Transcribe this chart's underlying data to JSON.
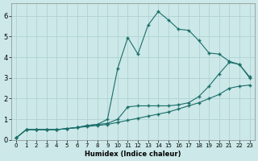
{
  "xlabel": "Humidex (Indice chaleur)",
  "bg_color": "#cce8e8",
  "line_color": "#1a6e6a",
  "xlim": [
    -0.5,
    23.5
  ],
  "ylim": [
    0,
    6.6
  ],
  "xticks": [
    0,
    1,
    2,
    3,
    4,
    5,
    6,
    7,
    8,
    9,
    10,
    11,
    12,
    13,
    14,
    15,
    16,
    17,
    18,
    19,
    20,
    21,
    22,
    23
  ],
  "yticks": [
    0,
    1,
    2,
    3,
    4,
    5,
    6
  ],
  "curve1_x": [
    0,
    1,
    2,
    3,
    4,
    5,
    6,
    7,
    8,
    9,
    10,
    11,
    12,
    13,
    14,
    15,
    16,
    17,
    18,
    19,
    20,
    21,
    22,
    23
  ],
  "curve1_y": [
    0.1,
    0.5,
    0.5,
    0.5,
    0.5,
    0.55,
    0.6,
    0.65,
    0.7,
    0.75,
    0.85,
    0.95,
    1.05,
    1.15,
    1.25,
    1.35,
    1.5,
    1.65,
    1.8,
    2.0,
    2.2,
    2.5,
    2.6,
    2.65
  ],
  "curve2_x": [
    0,
    1,
    2,
    3,
    4,
    5,
    6,
    7,
    8,
    9,
    10,
    11,
    12,
    13,
    14,
    15,
    16,
    17,
    18,
    19,
    20,
    21,
    22,
    23
  ],
  "curve2_y": [
    0.1,
    0.5,
    0.5,
    0.5,
    0.5,
    0.55,
    0.6,
    0.7,
    0.75,
    0.8,
    1.0,
    1.6,
    1.65,
    1.65,
    1.65,
    1.65,
    1.7,
    1.8,
    2.1,
    2.6,
    3.2,
    3.75,
    3.65,
    3.05
  ],
  "curve3_x": [
    0,
    1,
    2,
    3,
    4,
    5,
    6,
    7,
    8,
    9,
    10,
    11,
    12,
    13,
    14,
    15,
    16,
    17,
    18,
    19,
    20,
    21,
    22,
    23
  ],
  "curve3_y": [
    0.1,
    0.5,
    0.5,
    0.5,
    0.5,
    0.55,
    0.6,
    0.7,
    0.75,
    1.0,
    3.45,
    4.95,
    4.15,
    5.55,
    6.2,
    5.8,
    5.35,
    5.3,
    4.8,
    4.2,
    4.15,
    3.8,
    3.65,
    3.0
  ]
}
